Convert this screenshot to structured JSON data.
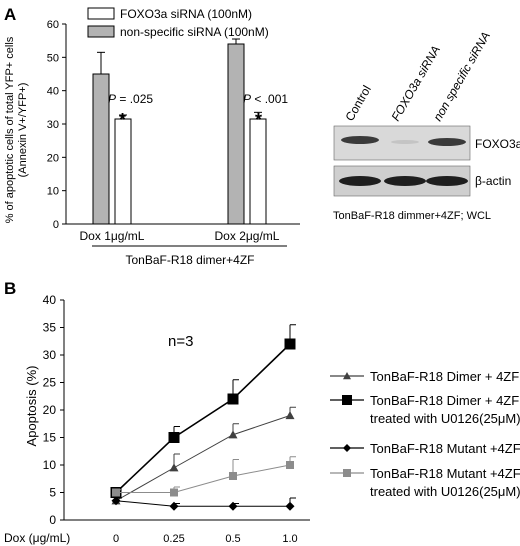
{
  "panel_a": {
    "label": "A",
    "legend": [
      {
        "label": "FOXO3a siRNA (100nM)",
        "color": "#ffffff"
      },
      {
        "label": "non-specific siRNA (100nM)",
        "color": "#b3b3b3"
      }
    ],
    "p_labels": [
      {
        "prefix": "P",
        "text": " = .025"
      },
      {
        "prefix": "P",
        "text": " < .001"
      }
    ],
    "asterisk": "*",
    "group_caption": "TonBaF-R18 dimer+4ZF",
    "blot": {
      "lanes": [
        "Control",
        "FOXO3a siRNA",
        "non specific siRNA"
      ],
      "bands": [
        "FOXO3a",
        "β-actin"
      ],
      "caption": "TonBaF-R18 dimmer+4ZF; WCL"
    }
  },
  "panel_b": {
    "label": "B",
    "annotation": "n=3",
    "x_prefix": "Dox (μg/mL)",
    "legend": [
      {
        "lines": [
          "TonBaF-R18 Dimer + 4ZF"
        ],
        "marker": "triangle"
      },
      {
        "lines": [
          "TonBaF-R18 Dimer + 4ZF",
          "treated with U0126(25μM)"
        ],
        "marker": "square"
      },
      {
        "lines": [
          "TonBaF-R18 Mutant +4ZF"
        ],
        "marker": "diamond"
      },
      {
        "lines": [
          "TonBaF-R18 Mutant +4ZF",
          "treated with U0126(25μM)"
        ],
        "marker": "square-gray"
      }
    ]
  },
  "chart_data": [
    {
      "type": "bar",
      "ylabel": [
        "% of apoptotic cells of total YFP+ cells",
        "(Annexin V+/YFP+)"
      ],
      "categories": [
        "Dox 1μg/mL",
        "Dox 2μg/mL"
      ],
      "ylim": [
        0,
        60
      ],
      "yticks": [
        0,
        10,
        20,
        30,
        40,
        50,
        60
      ],
      "series": [
        {
          "name": "non-specific siRNA (100nM)",
          "color": "#b3b3b3",
          "values": [
            45,
            54
          ],
          "errors": [
            6.5,
            1.5
          ]
        },
        {
          "name": "FOXO3a siRNA (100nM)",
          "color": "#ffffff",
          "values": [
            31.5,
            31.5
          ],
          "errors": [
            1.2,
            2.0
          ]
        }
      ]
    },
    {
      "type": "line",
      "ylabel": "Apoptosis (%)",
      "x": [
        "0",
        "0.25",
        "0.5",
        "1.0"
      ],
      "ylim": [
        0,
        40
      ],
      "yticks": [
        0,
        5,
        10,
        15,
        20,
        25,
        30,
        35,
        40
      ],
      "series": [
        {
          "name": "TonBaF-R18 Dimer + 4ZF",
          "marker": "triangle",
          "color": "#404040",
          "values": [
            3.5,
            9.5,
            15.5,
            19
          ],
          "errors": [
            0.5,
            2.5,
            2.0,
            1.5
          ]
        },
        {
          "name": "TonBaF-R18 Dimer + 4ZF treated with U0126(25μM)",
          "marker": "square",
          "color": "#000000",
          "values": [
            5,
            15,
            22,
            32
          ],
          "errors": [
            0.5,
            2.0,
            3.5,
            3.5
          ]
        },
        {
          "name": "TonBaF-R18 Mutant +4ZF",
          "marker": "diamond",
          "color": "#000000",
          "values": [
            3.5,
            2.5,
            2.5,
            2.5
          ],
          "errors": [
            0.5,
            0.5,
            0.5,
            1.5
          ]
        },
        {
          "name": "TonBaF-R18 Mutant +4ZF treated with U0126(25μM)",
          "marker": "square",
          "color": "#8c8c8c",
          "values": [
            5,
            5,
            8,
            10
          ],
          "errors": [
            0.5,
            1.0,
            3.0,
            1.5
          ]
        }
      ]
    }
  ]
}
